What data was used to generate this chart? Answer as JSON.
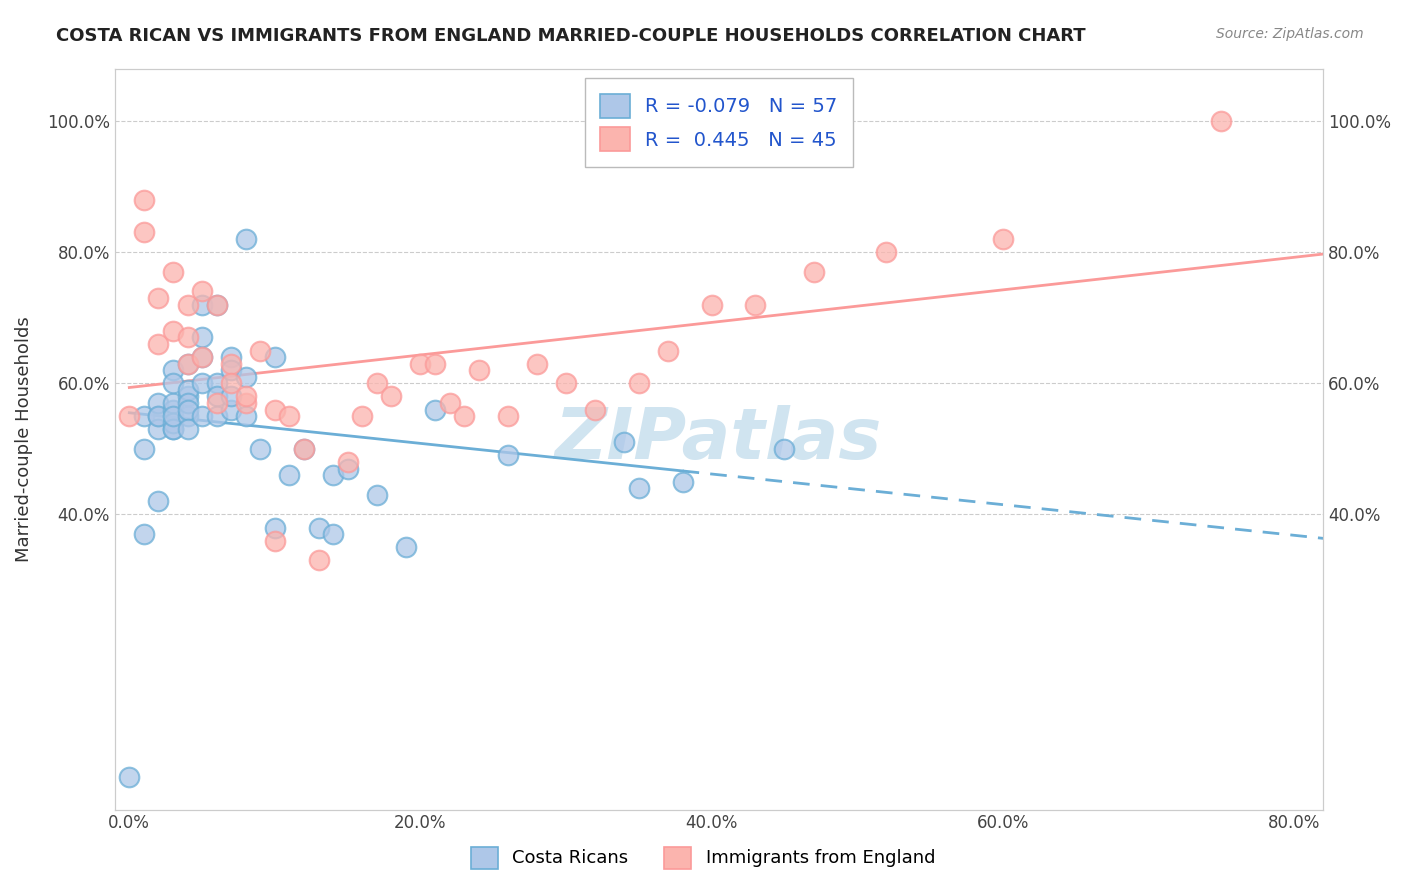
{
  "title": "COSTA RICAN VS IMMIGRANTS FROM ENGLAND MARRIED-COUPLE HOUSEHOLDS CORRELATION CHART",
  "source": "Source: ZipAtlas.com",
  "ylabel": "Married-couple Households",
  "xlim": [
    -0.01,
    0.82
  ],
  "ylim": [
    -0.05,
    1.08
  ],
  "blue_R": -0.079,
  "blue_N": 57,
  "pink_R": 0.445,
  "pink_N": 45,
  "blue_color": "#6baed6",
  "pink_color": "#fb9a99",
  "blue_fill": "#aec7e8",
  "pink_fill": "#fbb4ae",
  "legend_label_blue": "Costa Ricans",
  "legend_label_pink": "Immigrants from England",
  "blue_scatter_x": [
    0.0,
    0.01,
    0.01,
    0.01,
    0.02,
    0.02,
    0.02,
    0.02,
    0.02,
    0.03,
    0.03,
    0.03,
    0.03,
    0.03,
    0.03,
    0.03,
    0.03,
    0.04,
    0.04,
    0.04,
    0.04,
    0.04,
    0.04,
    0.04,
    0.05,
    0.05,
    0.05,
    0.05,
    0.05,
    0.06,
    0.06,
    0.06,
    0.06,
    0.07,
    0.07,
    0.07,
    0.07,
    0.08,
    0.08,
    0.08,
    0.09,
    0.1,
    0.1,
    0.11,
    0.12,
    0.13,
    0.14,
    0.14,
    0.15,
    0.17,
    0.19,
    0.21,
    0.26,
    0.34,
    0.35,
    0.38,
    0.45
  ],
  "blue_scatter_y": [
    0.0,
    0.55,
    0.37,
    0.5,
    0.55,
    0.53,
    0.57,
    0.42,
    0.55,
    0.56,
    0.57,
    0.62,
    0.53,
    0.6,
    0.54,
    0.53,
    0.55,
    0.58,
    0.59,
    0.55,
    0.57,
    0.56,
    0.63,
    0.53,
    0.6,
    0.64,
    0.67,
    0.72,
    0.55,
    0.6,
    0.58,
    0.72,
    0.55,
    0.56,
    0.64,
    0.62,
    0.58,
    0.61,
    0.55,
    0.82,
    0.5,
    0.38,
    0.64,
    0.46,
    0.5,
    0.38,
    0.37,
    0.46,
    0.47,
    0.43,
    0.35,
    0.56,
    0.49,
    0.51,
    0.44,
    0.45,
    0.5
  ],
  "pink_scatter_x": [
    0.0,
    0.01,
    0.01,
    0.02,
    0.02,
    0.03,
    0.03,
    0.04,
    0.04,
    0.04,
    0.05,
    0.05,
    0.06,
    0.06,
    0.07,
    0.07,
    0.08,
    0.08,
    0.09,
    0.1,
    0.1,
    0.11,
    0.12,
    0.13,
    0.15,
    0.16,
    0.17,
    0.18,
    0.2,
    0.21,
    0.22,
    0.23,
    0.24,
    0.26,
    0.28,
    0.3,
    0.32,
    0.35,
    0.37,
    0.4,
    0.43,
    0.47,
    0.52,
    0.6,
    0.75
  ],
  "pink_scatter_y": [
    0.55,
    0.88,
    0.83,
    0.73,
    0.66,
    0.68,
    0.77,
    0.67,
    0.72,
    0.63,
    0.64,
    0.74,
    0.72,
    0.57,
    0.63,
    0.6,
    0.57,
    0.58,
    0.65,
    0.56,
    0.36,
    0.55,
    0.5,
    0.33,
    0.48,
    0.55,
    0.6,
    0.58,
    0.63,
    0.63,
    0.57,
    0.55,
    0.62,
    0.55,
    0.63,
    0.6,
    0.56,
    0.6,
    0.65,
    0.72,
    0.72,
    0.77,
    0.8,
    0.82,
    1.0
  ],
  "background_color": "#ffffff",
  "grid_color": "#cccccc",
  "watermark_text": "ZIPatlas",
  "watermark_color": "#d0e4f0",
  "watermark_fontsize": 52
}
